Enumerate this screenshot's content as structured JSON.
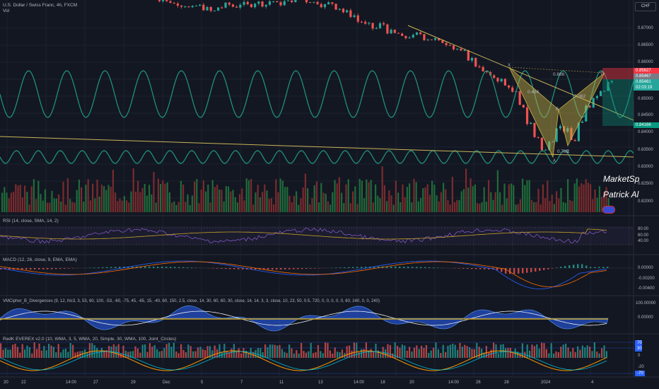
{
  "header": {
    "symbol": "U.S. Dollar / Swiss Franc, 4h, FXCM",
    "vol_label": "Vol",
    "currency": "CHF"
  },
  "watermark": {
    "line1": "MarketSp",
    "line2": "Patrick Al"
  },
  "price_axis": {
    "ticks": [
      "0.87000",
      "0.86500",
      "0.86000",
      "0.85000",
      "0.84500",
      "0.84000",
      "0.83500",
      "0.83000",
      "0.82500",
      "0.82000"
    ],
    "tags": [
      {
        "text": "0.85627",
        "color": "#f23645"
      },
      {
        "text": "0.85467",
        "color": "#787b86"
      },
      {
        "text": "0.85461",
        "color": "#26a69a"
      },
      {
        "text": "02:03:19",
        "color": "#26a69a"
      },
      {
        "text": "0.84166",
        "color": "#089981"
      }
    ]
  },
  "pattern_labels": {
    "x": "X",
    "a": "A",
    "b": "B",
    "c": "C",
    "d": "D",
    "ratio_886": "0.886",
    "ratio_b": "0.484",
    "ratio_c": "0.789",
    "ratio_d": "2.082"
  },
  "panes": {
    "rsi": {
      "title": "RSI (14, close, SMA, 14, 2)",
      "ticks": [
        "80.00",
        "60.00",
        "40.00"
      ]
    },
    "macd": {
      "title": "MACD (12, 26, close, 9, EMA, EMA)",
      "ticks": [
        "0.00000",
        "-0.00200",
        "-0.00400"
      ]
    },
    "vmc": {
      "title": "VMCipher_B_Divergences (9, 12, hlc3, 3, 53, 60, 100, -53, -60, -75, 45, -65, 15, -40, 60, 150, 2.5, close, 14, 30, 60, 60, 30, close, 14, 14, 3, 3, close, 10, 23, 50, 0.5, 720, 0, 0, 0, 0, 0, 60, 240, 0, 0, 240)",
      "ticks": [
        "100.00000",
        "0.00000"
      ]
    },
    "redk": {
      "title": "RedK EVEREX v2.0 (10, WMA, 3, 5, WMA, 20, Simple, 30, WMA, 100, Joint_Circles)",
      "ticks": [
        "70",
        "30",
        "0",
        "-20",
        "-70"
      ]
    }
  },
  "time_axis": [
    "20",
    "22",
    "14:00",
    "27",
    "29",
    "Dec",
    "5",
    "7",
    "11",
    "13",
    "14:00",
    "18",
    "20",
    "14:00",
    "26",
    "28",
    "2024",
    "4"
  ],
  "chart_data": {
    "type": "candlestick",
    "symbol": "USDCHF",
    "timeframe": "4h",
    "price_range": [
      0.815,
      0.8785
    ],
    "close_approx": [
      0.879,
      0.8785,
      0.8778,
      0.8772,
      0.8768,
      0.876,
      0.8766,
      0.8758,
      0.875,
      0.8762,
      0.877,
      0.8764,
      0.8772,
      0.8768,
      0.8776,
      0.877,
      0.878,
      0.8772,
      0.8778,
      0.8782,
      0.8788,
      0.878,
      0.8776,
      0.8768,
      0.8774,
      0.876,
      0.8748,
      0.8738,
      0.872,
      0.871,
      0.87,
      0.8712,
      0.869,
      0.8684,
      0.8672,
      0.8676,
      0.8684,
      0.867,
      0.8668,
      0.866,
      0.8655,
      0.864,
      0.863,
      0.861,
      0.859,
      0.857,
      0.8556,
      0.8548,
      0.853,
      0.851,
      0.847,
      0.842,
      0.838,
      0.834,
      0.8372,
      0.841,
      0.84,
      0.837,
      0.842,
      0.847,
      0.85,
      0.852,
      0.8546
    ],
    "rsi_range": [
      30,
      70
    ],
    "harmonic_pattern": {
      "type": "bearish bat",
      "ratios": [
        "0.886",
        "0.484",
        "0.789",
        "2.082"
      ]
    },
    "tp_sl_box": {
      "entry": "0.85461",
      "stop": "0.85627",
      "target": "0.84166"
    }
  }
}
